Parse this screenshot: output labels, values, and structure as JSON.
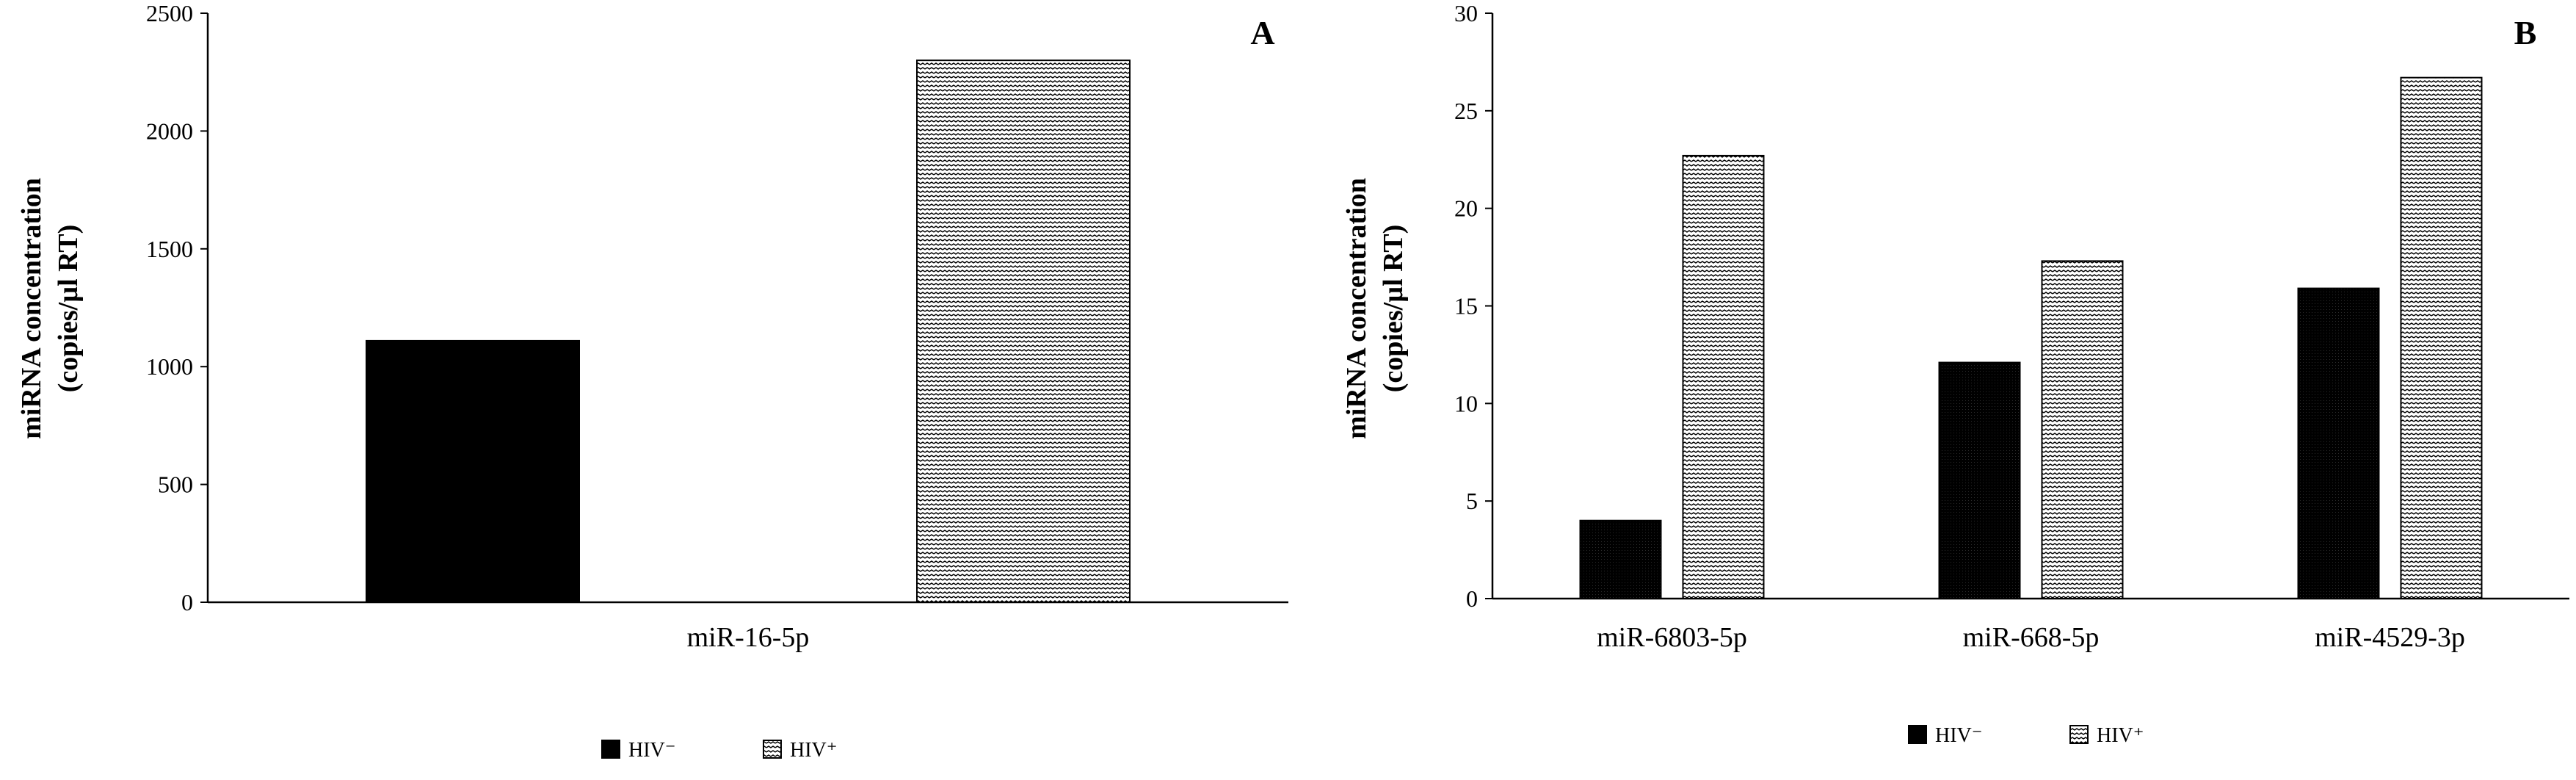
{
  "colors": {
    "hiv_negative": "#000000",
    "hiv_positive_pattern": "wave",
    "axis": "#000000",
    "background": "#ffffff"
  },
  "chart_data": [
    {
      "type": "bar",
      "panel_label": "A",
      "categories": [
        "miR-16-5p"
      ],
      "series": [
        {
          "name": "HIV⁻",
          "values": [
            1110
          ]
        },
        {
          "name": "HIV⁺",
          "values": [
            2300
          ]
        }
      ],
      "ylabel": [
        "miRNA concentration",
        "(copies/µl RT)"
      ],
      "ylim": [
        0,
        2500
      ],
      "yticks": [
        "0",
        "500",
        "1000",
        "1500",
        "2000",
        "2500"
      ],
      "grid": false,
      "legend": {
        "placement": "bottom",
        "entries": [
          "HIV⁻",
          "HIV⁺"
        ]
      }
    },
    {
      "type": "bar",
      "panel_label": "B",
      "categories": [
        "miR-6803-5p",
        "miR-668-5p",
        "miR-4529-3p"
      ],
      "series": [
        {
          "name": "HIV⁻",
          "values": [
            4.0,
            12.1,
            15.9
          ]
        },
        {
          "name": "HIV⁺",
          "values": [
            22.7,
            17.3,
            26.7
          ]
        }
      ],
      "ylabel": [
        "miRNA concentration",
        "(copies/µl RT)"
      ],
      "ylim": [
        0,
        30
      ],
      "yticks": [
        "0",
        "5",
        "10",
        "15",
        "20",
        "25",
        "30"
      ],
      "grid": false,
      "legend": {
        "placement": "bottom",
        "entries": [
          "HIV⁻",
          "HIV⁺"
        ]
      }
    }
  ]
}
